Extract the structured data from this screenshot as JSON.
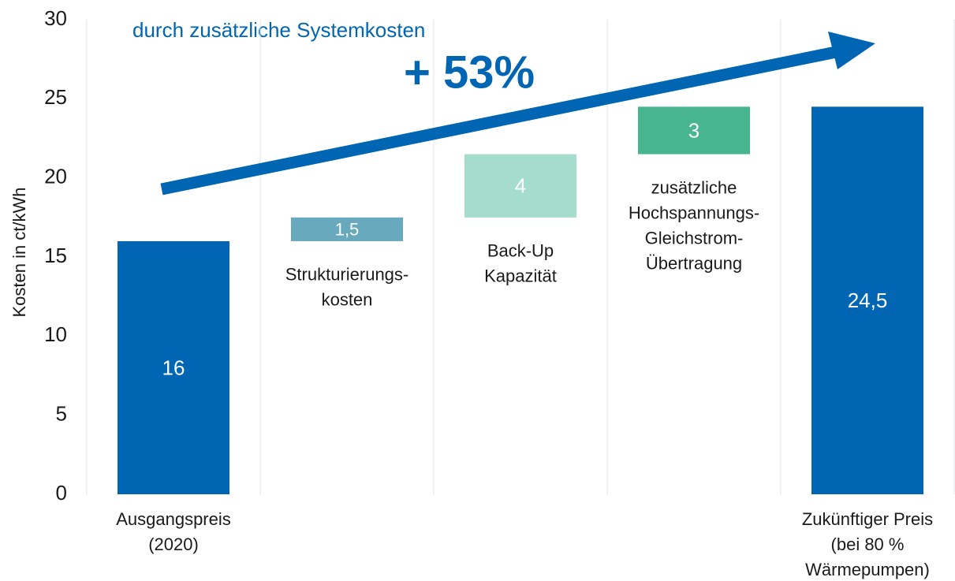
{
  "chart_data": {
    "type": "waterfall",
    "annotations": [
      "durch zusätzliche Systemkosten",
      "+ 53%"
    ],
    "y_label": "Kosten in ct/kWh",
    "categories": [
      [
        "Ausgangspreis",
        "(2020)"
      ],
      [
        "Strukturierungs-",
        "kosten"
      ],
      [
        "Back-Up",
        "Kapazität"
      ],
      [
        "zusätzliche",
        "Hochspannungs-",
        "Gleichstrom-",
        "Übertragung"
      ],
      [
        "Zukünftiger Preis",
        "(bei 80 %",
        "Wärmepumpen)"
      ]
    ],
    "measure": [
      "absolute",
      "relative",
      "relative",
      "relative",
      "total"
    ],
    "values": [
      16,
      1.5,
      4,
      3,
      24.5
    ],
    "value_labels": [
      "16",
      "1,5",
      "4",
      "3",
      "24,5"
    ],
    "colors": [
      "#0066b3",
      "#69a9be",
      "#a6dccb",
      "#47b690",
      "#0066b3"
    ],
    "ylim": [
      0,
      30
    ],
    "yticks": [
      0,
      5,
      10,
      15,
      20,
      25,
      30
    ],
    "grid": "x"
  }
}
